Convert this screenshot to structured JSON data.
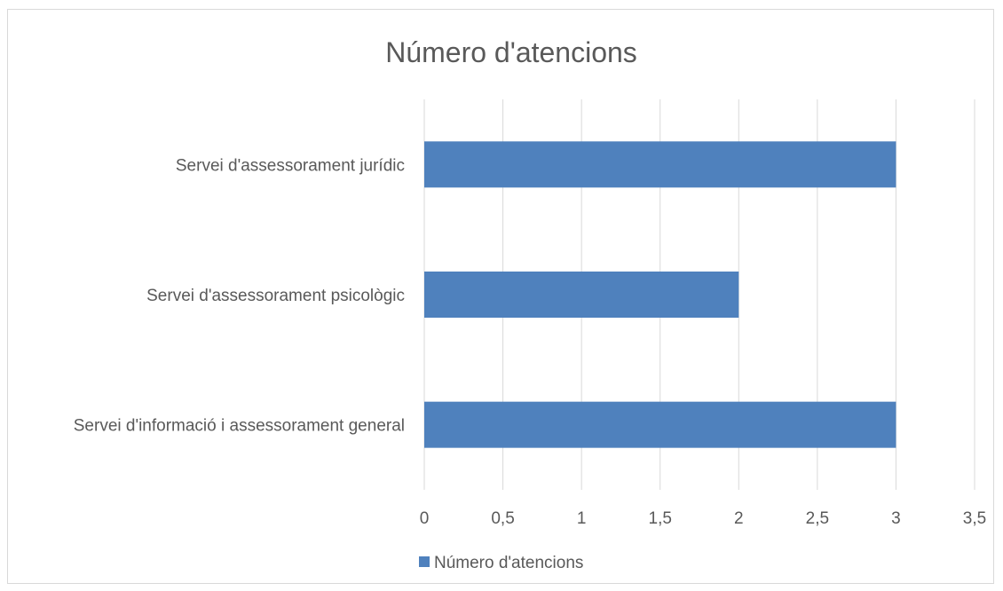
{
  "chart_data": {
    "type": "bar",
    "orientation": "horizontal",
    "title": "Número d'atencions",
    "categories": [
      "Servei d'assessorament jurídic",
      "Servei d'assessorament psicològic",
      "Servei d'informació i assessorament general"
    ],
    "series": [
      {
        "name": "Número d'atencions",
        "values": [
          3,
          2,
          3
        ],
        "color": "#4f81bd"
      }
    ],
    "xlim": [
      0,
      3.5
    ],
    "xticks": [
      "0",
      "0,5",
      "1",
      "1,5",
      "2",
      "2,5",
      "3",
      "3,5"
    ],
    "xlabel": "",
    "ylabel": "",
    "grid": "vertical",
    "legend": "bottom"
  }
}
